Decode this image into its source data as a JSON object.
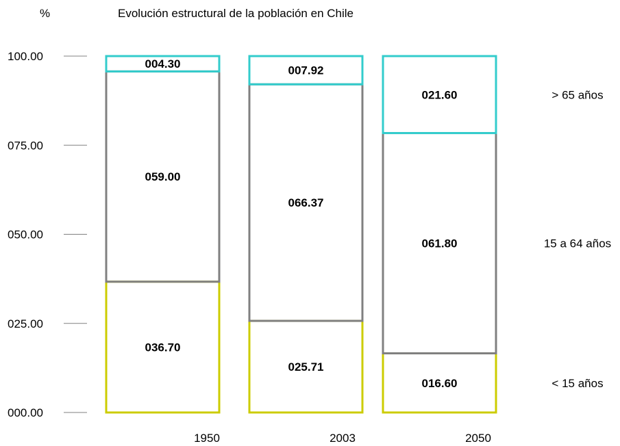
{
  "header": {
    "unit_label": "%",
    "title": "Evolución estructural de la población en Chile"
  },
  "colors": {
    "lt15": "#cccc00",
    "mid": "#808080",
    "gt65": "#33cccc",
    "tick": "#808080"
  },
  "chart_data": {
    "type": "bar",
    "stacked": true,
    "title": "Evolución estructural de la población en Chile",
    "ylabel": "%",
    "ylim": [
      0,
      100
    ],
    "yticks": [
      "000.00",
      "025.00",
      "050.00",
      "075.00",
      "100.00"
    ],
    "ytick_values": [
      0,
      25,
      50,
      75,
      100
    ],
    "categories": [
      "1950",
      "2003",
      "2050"
    ],
    "series": [
      {
        "key": "lt15",
        "name": "< 15 años",
        "values": [
          36.7,
          25.71,
          16.6
        ],
        "labels": [
          "036.70",
          "025.71",
          "016.60"
        ]
      },
      {
        "key": "mid",
        "name": "15 a 64 años",
        "values": [
          59.0,
          66.37,
          61.8
        ],
        "labels": [
          "059.00",
          "066.37",
          "061.80"
        ]
      },
      {
        "key": "gt65",
        "name": "> 65 años",
        "values": [
          4.3,
          7.92,
          21.6
        ],
        "labels": [
          "004.30",
          "007.92",
          "021.60"
        ]
      }
    ],
    "grid": false,
    "legend": "right"
  }
}
